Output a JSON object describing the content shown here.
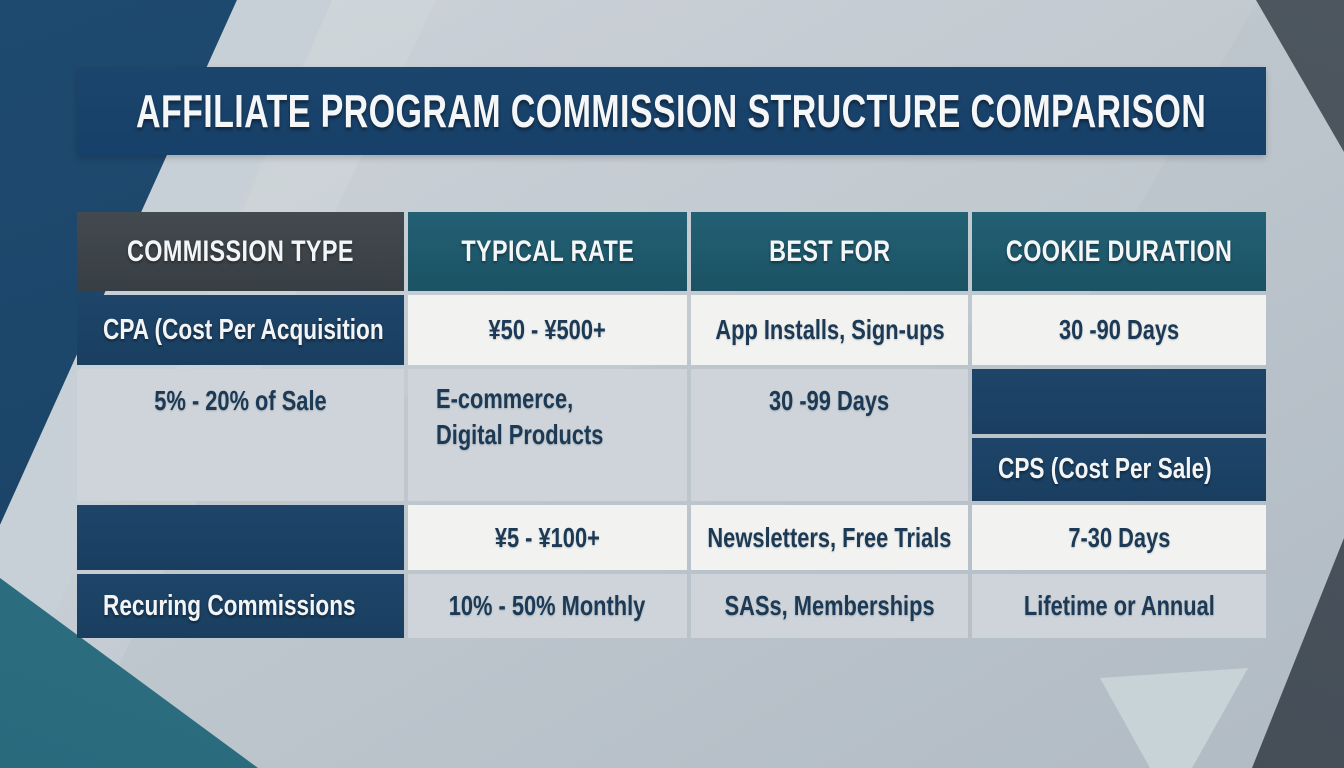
{
  "title_bar": {
    "title": "AFFILIATE PROGRAM COMMISSION STRUCTURE COMPARISON"
  },
  "table": {
    "headers": {
      "commission_type": "COMMISSION TYPE",
      "typical_rate": "TYPICAL RATE",
      "best_for": "BEST FOR",
      "cookie_duration": "COOKIE DURATION"
    },
    "rows": [
      {
        "commission_type": "CPA (Cost Per Acquisition",
        "typical_rate": "¥50 - ¥500+",
        "best_for": "App Installs, Sign-ups",
        "cookie_duration": "30 -90 Days"
      },
      {
        "commission_type": "CPS (Cost Per Sale)",
        "typical_rate": "5% - 20% of Sale",
        "best_for_line1": "E-commerce,",
        "best_for_line2": "Digital Products",
        "cookie_duration": "30 -99 Days"
      },
      {
        "typical_rate": "¥5 - ¥100+",
        "best_for": "Newsletters, Free Trials",
        "cookie_duration": "7-30 Days"
      },
      {
        "commission_type": "Recuring Commissions",
        "typical_rate": "10% - 50% Monthly",
        "best_for": "SASs, Memberships",
        "cookie_duration": "Lifetime or Annual"
      }
    ]
  },
  "chart_data": {
    "type": "table",
    "title": "AFFILIATE PROGRAM COMMISSION STRUCTURE COMPARISON",
    "columns": [
      "COMMISSION TYPE",
      "TYPICAL RATE",
      "BEST FOR",
      "COOKIE DURATION"
    ],
    "rows": [
      [
        "CPA (Cost Per Acquisition",
        "¥50 - ¥500+",
        "App Installs, Sign-ups",
        "30 -90 Days"
      ],
      [
        "CPS (Cost Per Sale)",
        "5% - 20% of Sale",
        "E-commerce, Digital Products",
        "30 -99 Days"
      ],
      [
        "CPS (Cost Per Sale)",
        "¥5 - ¥100+",
        "Newsletters, Free Trials",
        "7-30 Days"
      ],
      [
        "Recuring Commissions",
        "10% - 50% Monthly",
        "SASs, Memberships",
        "Lifetime or Annual"
      ]
    ]
  },
  "colors": {
    "title_bar_bg": "#17406a",
    "header_type_bg": "#3d4449",
    "header_teal_bg": "#1f5b6e",
    "row_label_navy_bg": "#1c4063",
    "row_light_bg": "#f2f2f0",
    "row_bluegray_bg": "#ced4d9",
    "data_text": "#1c3a55",
    "bg_teal_wedge": "#2e7183",
    "bg_slate_wedge": "#49525b",
    "bg_base": "#bfc7ce"
  }
}
